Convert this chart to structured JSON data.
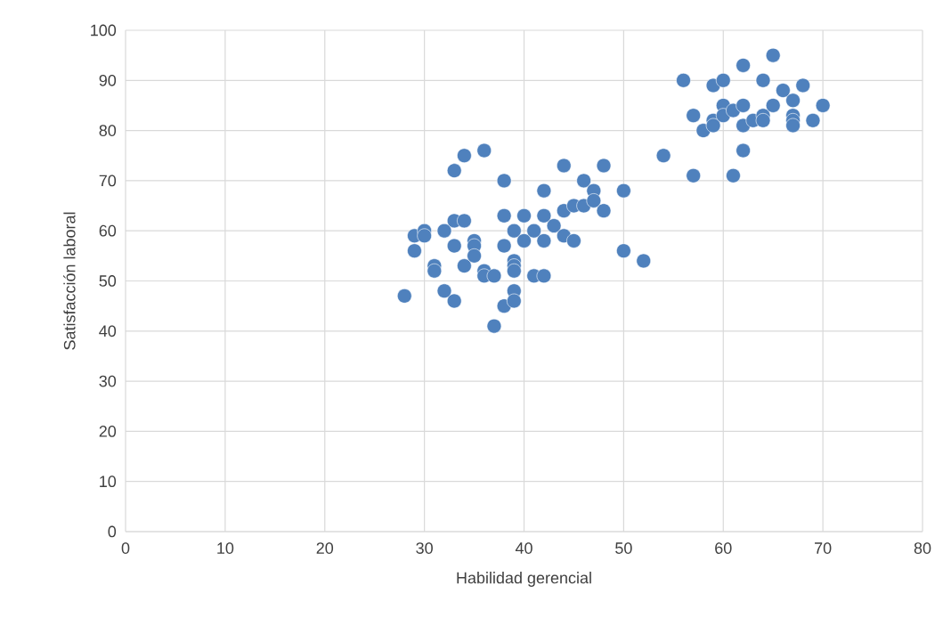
{
  "chart_data": {
    "type": "scatter",
    "xlabel": "Habilidad gerencial",
    "ylabel": "Satisfacción laboral",
    "xlim": [
      0,
      80
    ],
    "ylim": [
      0,
      100
    ],
    "xticks": [
      0,
      10,
      20,
      30,
      40,
      50,
      60,
      70,
      80
    ],
    "yticks": [
      0,
      10,
      20,
      30,
      40,
      50,
      60,
      70,
      80,
      90,
      100
    ],
    "grid": true,
    "marker": "circle",
    "series": [
      {
        "color": "#4f81bd",
        "x": [
          28,
          29,
          29,
          30,
          30,
          31,
          31,
          32,
          32,
          33,
          33,
          33,
          33,
          34,
          34,
          34,
          35,
          35,
          35,
          36,
          36,
          36,
          37,
          37,
          38,
          38,
          38,
          38,
          39,
          39,
          39,
          39,
          39,
          39,
          40,
          40,
          41,
          41,
          42,
          42,
          42,
          42,
          43,
          44,
          44,
          44,
          45,
          45,
          46,
          46,
          47,
          47,
          48,
          48,
          50,
          50,
          52,
          54,
          56,
          57,
          57,
          58,
          59,
          59,
          59,
          60,
          60,
          60,
          61,
          61,
          62,
          62,
          62,
          62,
          63,
          64,
          64,
          64,
          65,
          65,
          66,
          67,
          67,
          67,
          67,
          68,
          69,
          70
        ],
        "values": [
          47,
          59,
          56,
          60,
          59,
          53,
          52,
          60,
          48,
          72,
          62,
          57,
          46,
          75,
          62,
          53,
          58,
          57,
          55,
          76,
          52,
          51,
          51,
          41,
          70,
          63,
          57,
          45,
          60,
          54,
          53,
          52,
          48,
          46,
          63,
          58,
          60,
          51,
          68,
          63,
          58,
          51,
          61,
          73,
          64,
          59,
          65,
          58,
          70,
          65,
          68,
          66,
          73,
          64,
          68,
          56,
          54,
          75,
          90,
          83,
          71,
          80,
          89,
          82,
          81,
          90,
          85,
          83,
          84,
          71,
          93,
          85,
          81,
          76,
          82,
          90,
          83,
          82,
          95,
          85,
          88,
          86,
          83,
          82,
          81,
          89,
          82,
          85
        ]
      }
    ]
  }
}
